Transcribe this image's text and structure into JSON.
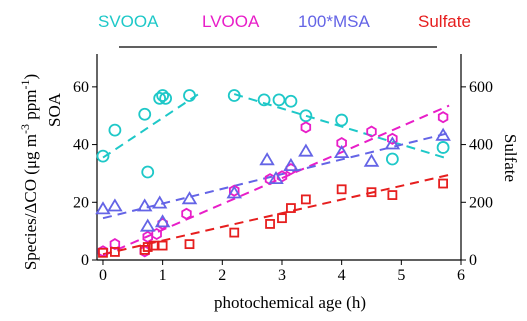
{
  "chart_data": {
    "type": "scatter",
    "xlabel": "photochemical age (h)",
    "ylabel_left": "Species/ΔCO (μg m⁻³ ppm⁻¹)",
    "ylabel_left_lines": [
      "-1",
      "Species/ΔCO (μg m",
      "-3",
      "ppm",
      ")"
    ],
    "ylabel_left_sub": "SOA",
    "ylabel_right": "Sulfate",
    "xlim": [
      -0.1,
      6
    ],
    "ylim_left": [
      0,
      70
    ],
    "ylim_right": [
      0,
      700
    ],
    "xticks": [
      0,
      1,
      2,
      3,
      4,
      5,
      6
    ],
    "yticks_left": [
      0,
      20,
      40,
      60
    ],
    "yticks_right": [
      0,
      200,
      400,
      600
    ],
    "grid": false,
    "legend_position": "top, above plot",
    "colors": {
      "SVOOA": "#1ec8c8",
      "LVOOA": "#e81ec8",
      "MSA": "#6464e6",
      "Sulfate": "#e61e1e"
    },
    "series": [
      {
        "name": "SVOOA",
        "axis": "left",
        "marker": "circle",
        "color": "#1ec8c8",
        "points": [
          [
            0,
            36
          ],
          [
            0.2,
            45
          ],
          [
            0.7,
            50.5
          ],
          [
            0.75,
            30.5
          ],
          [
            0.95,
            56
          ],
          [
            1.0,
            57
          ],
          [
            1.05,
            56
          ],
          [
            1.45,
            57
          ],
          [
            2.2,
            57
          ],
          [
            2.7,
            55.5
          ],
          [
            2.95,
            55.5
          ],
          [
            3.15,
            55
          ],
          [
            3.4,
            50
          ],
          [
            4.0,
            48.5
          ],
          [
            4.85,
            35
          ],
          [
            5.7,
            39
          ]
        ],
        "fit": [
          [
            0,
            35.5
          ],
          [
            1.6,
            57.5
          ],
          null,
          [
            2.2,
            57.5
          ],
          [
            5.8,
            35
          ]
        ]
      },
      {
        "name": "LVOOA",
        "axis": "left",
        "marker": "hexagon",
        "color": "#e81ec8",
        "points": [
          [
            0,
            3
          ],
          [
            0.2,
            5.5
          ],
          [
            0.7,
            3
          ],
          [
            0.75,
            8
          ],
          [
            0.9,
            9
          ],
          [
            1.0,
            12.5
          ],
          [
            1.4,
            16
          ],
          [
            2.2,
            24
          ],
          [
            2.8,
            28
          ],
          [
            3.0,
            29
          ],
          [
            3.15,
            31.5
          ],
          [
            3.4,
            46
          ],
          [
            4.0,
            40.5
          ],
          [
            4.5,
            44.5
          ],
          [
            4.85,
            42
          ],
          [
            5.7,
            49.5
          ]
        ],
        "fit": [
          [
            0,
            1.5
          ],
          [
            5.8,
            53.5
          ]
        ]
      },
      {
        "name": "100*MSA",
        "axis": "left",
        "marker": "triangle",
        "color": "#6464e6",
        "points": [
          [
            0,
            17.5
          ],
          [
            0.2,
            18.5
          ],
          [
            0.7,
            18.5
          ],
          [
            0.75,
            11.5
          ],
          [
            0.95,
            19.5
          ],
          [
            1.0,
            13
          ],
          [
            1.45,
            21
          ],
          [
            2.2,
            23
          ],
          [
            2.75,
            34.5
          ],
          [
            2.9,
            28
          ],
          [
            3.15,
            32.5
          ],
          [
            3.4,
            37.5
          ],
          [
            4.0,
            37
          ],
          [
            4.5,
            34
          ],
          [
            4.85,
            40
          ],
          [
            5.7,
            43
          ]
        ],
        "fit": [
          [
            0,
            14.5
          ],
          [
            5.8,
            44
          ]
        ]
      },
      {
        "name": "Sulfate",
        "axis": "right",
        "marker": "square",
        "color": "#e61e1e",
        "points": [
          [
            0,
            25
          ],
          [
            0.2,
            28
          ],
          [
            0.7,
            35
          ],
          [
            0.75,
            45
          ],
          [
            0.85,
            50
          ],
          [
            1.0,
            50
          ],
          [
            1.45,
            55
          ],
          [
            2.2,
            95
          ],
          [
            2.8,
            125
          ],
          [
            3.0,
            145
          ],
          [
            3.15,
            180
          ],
          [
            3.4,
            210
          ],
          [
            4.0,
            245
          ],
          [
            4.5,
            235
          ],
          [
            4.85,
            225
          ],
          [
            5.7,
            265
          ]
        ],
        "fit": [
          [
            0,
            20
          ],
          [
            5.8,
            295
          ]
        ]
      }
    ]
  }
}
